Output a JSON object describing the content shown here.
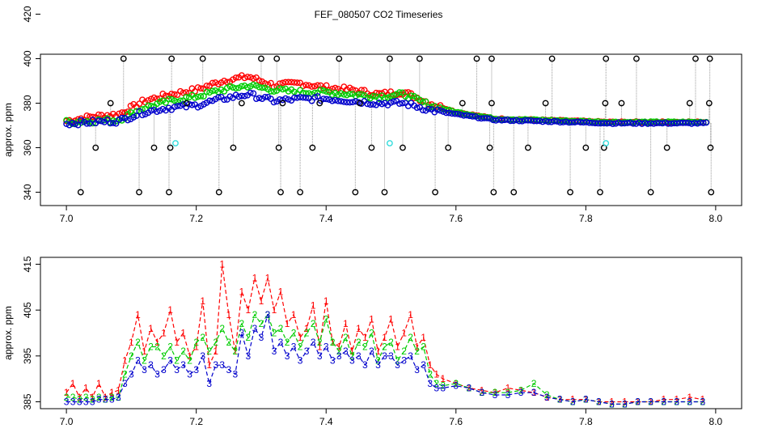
{
  "figure_title": "FEF_080507  CO2 Timeseries",
  "colors": {
    "series1": "#ff0000",
    "series2": "#00cc00",
    "series3": "#0000cc",
    "reference": "#000000",
    "cal": "#33dddd",
    "drop_line": "#999999"
  },
  "chart_data": [
    {
      "type": "scatter",
      "title": "FEF_080507  CO2 Timeseries",
      "xlabel": "",
      "ylabel": "approx. ppm",
      "xlim": [
        6.96,
        8.04
      ],
      "ylim": [
        334,
        402
      ],
      "xticks": [
        7.0,
        7.2,
        7.4,
        7.6,
        7.8,
        8.0
      ],
      "xtick_labels": [
        "7.0",
        "7.2",
        "7.4",
        "7.6",
        "7.8",
        "8.0"
      ],
      "yticks": [
        340,
        360,
        380,
        400,
        420
      ],
      "ytick_labels": [
        "340",
        "360",
        "380",
        "400",
        "420"
      ],
      "series": [
        {
          "role": "series1",
          "x": [
            7.0,
            7.04,
            7.08,
            7.12,
            7.16,
            7.2,
            7.24,
            7.28,
            7.32,
            7.36,
            7.4,
            7.44,
            7.48,
            7.52,
            7.56,
            7.6,
            7.66,
            7.72,
            7.78,
            7.84,
            7.9,
            7.96,
            7.99
          ],
          "y": [
            372,
            374,
            375,
            381,
            384,
            386,
            390,
            392,
            388,
            389,
            387,
            386,
            384,
            385,
            380,
            376,
            373,
            372.5,
            372,
            371.5,
            371.5,
            371.5,
            371.5
          ]
        },
        {
          "role": "series2",
          "x": [
            7.0,
            7.04,
            7.08,
            7.12,
            7.16,
            7.2,
            7.24,
            7.28,
            7.32,
            7.36,
            7.4,
            7.44,
            7.48,
            7.52,
            7.56,
            7.6,
            7.66,
            7.72,
            7.78,
            7.84,
            7.9,
            7.96,
            7.99
          ],
          "y": [
            371.5,
            372,
            372.5,
            378,
            381,
            383,
            386,
            388,
            386,
            385,
            385,
            384,
            383,
            384,
            379,
            376,
            373,
            372.5,
            372,
            371.5,
            371.5,
            371.5,
            371.5
          ]
        },
        {
          "role": "series3",
          "x": [
            7.0,
            7.04,
            7.08,
            7.12,
            7.16,
            7.2,
            7.24,
            7.28,
            7.32,
            7.36,
            7.4,
            7.44,
            7.48,
            7.52,
            7.56,
            7.6,
            7.66,
            7.72,
            7.78,
            7.84,
            7.9,
            7.96,
            7.99
          ],
          "y": [
            371,
            371.5,
            372,
            376,
            378,
            379,
            382,
            384,
            381,
            382,
            382,
            381,
            380,
            380,
            377,
            375,
            372.5,
            372,
            371.5,
            371,
            371,
            371,
            371
          ]
        },
        {
          "role": "reference_high",
          "x": [
            7.088,
            7.162,
            7.21,
            7.3,
            7.324,
            7.42,
            7.498,
            7.544,
            7.632,
            7.655,
            7.748,
            7.831,
            7.878,
            7.969,
            7.991
          ],
          "y": 400
        },
        {
          "role": "reference_low",
          "x": [
            7.022,
            7.112,
            7.158,
            7.235,
            7.33,
            7.36,
            7.445,
            7.49,
            7.568,
            7.658,
            7.689,
            7.776,
            7.822,
            7.9,
            7.993
          ],
          "y": 340
        },
        {
          "role": "reference_mid",
          "x": [
            7.045,
            7.135,
            7.16,
            7.257,
            7.327,
            7.379,
            7.47,
            7.518,
            7.588,
            7.652,
            7.711,
            7.8,
            7.828,
            7.925,
            7.992
          ],
          "y": 360
        },
        {
          "role": "reference_near",
          "x": [
            7.068,
            7.185,
            7.27,
            7.333,
            7.39,
            7.452,
            7.61,
            7.655,
            7.738,
            7.83,
            7.855,
            7.96,
            7.99
          ],
          "y": 380
        },
        {
          "role": "cal",
          "x": [
            7.168,
            7.498,
            7.831
          ],
          "y": 362
        }
      ]
    },
    {
      "type": "line",
      "title": "",
      "xlabel": "",
      "ylabel": "approx. ppm",
      "xlim": [
        6.96,
        8.04
      ],
      "ylim": [
        383.5,
        416.5
      ],
      "xticks": [
        7.0,
        7.2,
        7.4,
        7.6,
        7.8,
        8.0
      ],
      "xtick_labels": [
        "7.0",
        "7.2",
        "7.4",
        "7.6",
        "7.8",
        "8.0"
      ],
      "yticks": [
        385,
        395,
        405,
        415
      ],
      "ytick_labels": [
        "385",
        "395",
        "405",
        "415"
      ],
      "series": [
        {
          "marker": "1",
          "x": [
            7.0,
            7.01,
            7.02,
            7.03,
            7.04,
            7.05,
            7.06,
            7.07,
            7.08,
            7.09,
            7.1,
            7.11,
            7.12,
            7.13,
            7.14,
            7.15,
            7.16,
            7.17,
            7.18,
            7.19,
            7.2,
            7.21,
            7.22,
            7.23,
            7.24,
            7.25,
            7.26,
            7.27,
            7.28,
            7.29,
            7.3,
            7.31,
            7.32,
            7.33,
            7.34,
            7.35,
            7.36,
            7.37,
            7.38,
            7.39,
            7.4,
            7.41,
            7.42,
            7.43,
            7.44,
            7.45,
            7.46,
            7.47,
            7.48,
            7.49,
            7.5,
            7.51,
            7.52,
            7.53,
            7.54,
            7.55,
            7.56,
            7.57,
            7.58,
            7.6,
            7.62,
            7.64,
            7.66,
            7.68,
            7.7,
            7.72,
            7.74,
            7.76,
            7.78,
            7.8,
            7.82,
            7.84,
            7.86,
            7.88,
            7.9,
            7.92,
            7.94,
            7.96,
            7.98
          ],
          "y": [
            387,
            389,
            386,
            388,
            386,
            389,
            386,
            387,
            387.5,
            394,
            398,
            404,
            396,
            401,
            398,
            400,
            405,
            398,
            400,
            395,
            397,
            407,
            393,
            396,
            415,
            404,
            396,
            409,
            405,
            412,
            407,
            412,
            405,
            409,
            402,
            404,
            399,
            401,
            406,
            397,
            407,
            398,
            397,
            402,
            396,
            401,
            399,
            403,
            396,
            399,
            403,
            397,
            400,
            404,
            397,
            399,
            393,
            391,
            390,
            389,
            388,
            387.5,
            387,
            388,
            387.5,
            387,
            386,
            385.5,
            385.5,
            385.5,
            385,
            385,
            385,
            385,
            385,
            385.5,
            385.5,
            386,
            385.5
          ]
        },
        {
          "marker": "2",
          "x": [
            7.0,
            7.01,
            7.02,
            7.03,
            7.04,
            7.05,
            7.06,
            7.07,
            7.08,
            7.09,
            7.1,
            7.11,
            7.12,
            7.13,
            7.14,
            7.15,
            7.16,
            7.17,
            7.18,
            7.19,
            7.2,
            7.21,
            7.22,
            7.23,
            7.24,
            7.25,
            7.26,
            7.27,
            7.28,
            7.29,
            7.3,
            7.31,
            7.32,
            7.33,
            7.34,
            7.35,
            7.36,
            7.37,
            7.38,
            7.39,
            7.4,
            7.41,
            7.42,
            7.43,
            7.44,
            7.45,
            7.46,
            7.47,
            7.48,
            7.49,
            7.5,
            7.51,
            7.52,
            7.53,
            7.54,
            7.55,
            7.56,
            7.57,
            7.58,
            7.6,
            7.62,
            7.64,
            7.66,
            7.68,
            7.7,
            7.72,
            7.74,
            7.76,
            7.78,
            7.8,
            7.82,
            7.84,
            7.86,
            7.88,
            7.9,
            7.92,
            7.94,
            7.96,
            7.98
          ],
          "y": [
            386,
            386,
            385.5,
            386,
            385.5,
            386,
            385.5,
            386,
            386,
            391,
            395,
            398,
            394,
            397,
            397,
            395,
            397,
            394,
            396,
            394,
            398,
            399,
            396,
            398,
            401,
            398,
            396,
            402,
            399,
            404,
            402,
            404,
            400,
            401,
            398,
            400,
            397,
            400,
            402,
            398,
            403,
            398,
            396,
            399,
            395,
            398,
            397,
            400,
            394,
            397,
            398,
            394,
            396,
            399,
            396,
            397,
            391,
            389,
            388.5,
            389,
            388,
            387,
            387,
            387,
            387.5,
            389,
            386.5,
            385.5,
            385,
            385.5,
            385,
            384.5,
            384.5,
            385,
            385,
            385,
            385,
            385,
            385
          ]
        },
        {
          "marker": "3",
          "x": [
            7.0,
            7.01,
            7.02,
            7.03,
            7.04,
            7.05,
            7.06,
            7.07,
            7.08,
            7.09,
            7.1,
            7.11,
            7.12,
            7.13,
            7.14,
            7.15,
            7.16,
            7.17,
            7.18,
            7.19,
            7.2,
            7.21,
            7.22,
            7.23,
            7.24,
            7.25,
            7.26,
            7.27,
            7.28,
            7.29,
            7.3,
            7.31,
            7.32,
            7.33,
            7.34,
            7.35,
            7.36,
            7.37,
            7.38,
            7.39,
            7.4,
            7.41,
            7.42,
            7.43,
            7.44,
            7.45,
            7.46,
            7.47,
            7.48,
            7.49,
            7.5,
            7.51,
            7.52,
            7.53,
            7.54,
            7.55,
            7.56,
            7.57,
            7.58,
            7.6,
            7.62,
            7.64,
            7.66,
            7.68,
            7.7,
            7.72,
            7.74,
            7.76,
            7.78,
            7.8,
            7.82,
            7.84,
            7.86,
            7.88,
            7.9,
            7.92,
            7.94,
            7.96,
            7.98
          ],
          "y": [
            385,
            385,
            385,
            385,
            385,
            385.5,
            385.5,
            385.5,
            386,
            389,
            391,
            394,
            392,
            393,
            391,
            392,
            394,
            392,
            393,
            391,
            392,
            395,
            389,
            393,
            393,
            392,
            391,
            400,
            395,
            401,
            399,
            404,
            396,
            398,
            395,
            397,
            394,
            396,
            398,
            395,
            397,
            394,
            395,
            396,
            394,
            395,
            393,
            396,
            393,
            395,
            395,
            393,
            394,
            395,
            392,
            393,
            389,
            388,
            388,
            388.5,
            388,
            387,
            386.5,
            386.5,
            387,
            387,
            386,
            385.5,
            385,
            385.5,
            385,
            384.5,
            384.5,
            385,
            385,
            385,
            385,
            385,
            385
          ]
        }
      ]
    }
  ]
}
